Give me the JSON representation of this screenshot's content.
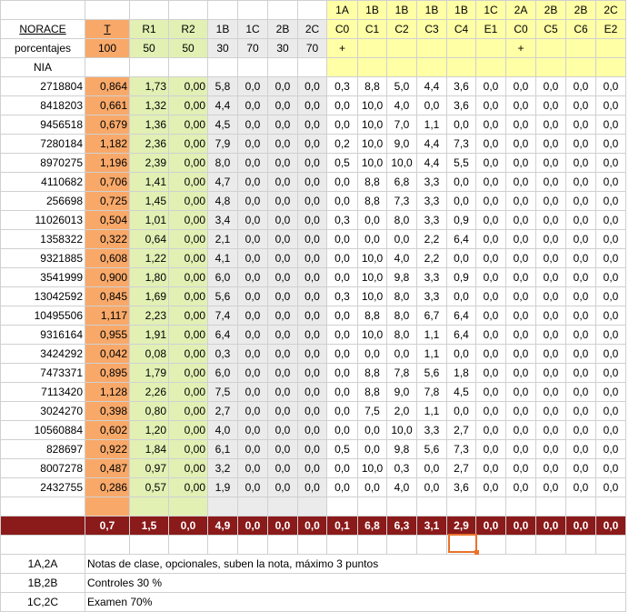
{
  "header": {
    "top": [
      "",
      "",
      "",
      "",
      "",
      "",
      "",
      "",
      "1A",
      "1B",
      "1B",
      "1B",
      "1B",
      "1C",
      "2A",
      "2B",
      "2B",
      "2C"
    ],
    "row1": [
      "NORACE",
      "T",
      "R1",
      "R2",
      "1B",
      "1C",
      "2B",
      "2C",
      "C0",
      "C1",
      "C2",
      "C3",
      "C4",
      "E1",
      "C0",
      "C5",
      "C6",
      "E2"
    ],
    "row2": [
      "porcentajes",
      "100",
      "50",
      "50",
      "30",
      "70",
      "30",
      "70",
      "+",
      "",
      "",
      "",
      "",
      "",
      "+",
      "",
      "",
      ""
    ],
    "row3": [
      "NIA",
      "",
      "",
      "",
      "",
      "",
      "",
      "",
      "",
      "",
      "",
      "",
      "",
      "",
      "",
      "",
      "",
      ""
    ]
  },
  "rows": [
    [
      "2718804",
      "0,864",
      "1,73",
      "0,00",
      "5,8",
      "0,0",
      "0,0",
      "0,0",
      "0,3",
      "8,8",
      "5,0",
      "4,4",
      "3,6",
      "0,0",
      "0,0",
      "0,0",
      "0,0",
      "0,0"
    ],
    [
      "8418203",
      "0,661",
      "1,32",
      "0,00",
      "4,4",
      "0,0",
      "0,0",
      "0,0",
      "0,0",
      "10,0",
      "4,0",
      "0,0",
      "3,6",
      "0,0",
      "0,0",
      "0,0",
      "0,0",
      "0,0"
    ],
    [
      "9456518",
      "0,679",
      "1,36",
      "0,00",
      "4,5",
      "0,0",
      "0,0",
      "0,0",
      "0,0",
      "10,0",
      "7,0",
      "1,1",
      "0,0",
      "0,0",
      "0,0",
      "0,0",
      "0,0",
      "0,0"
    ],
    [
      "7280184",
      "1,182",
      "2,36",
      "0,00",
      "7,9",
      "0,0",
      "0,0",
      "0,0",
      "0,2",
      "10,0",
      "9,0",
      "4,4",
      "7,3",
      "0,0",
      "0,0",
      "0,0",
      "0,0",
      "0,0"
    ],
    [
      "8970275",
      "1,196",
      "2,39",
      "0,00",
      "8,0",
      "0,0",
      "0,0",
      "0,0",
      "0,5",
      "10,0",
      "10,0",
      "4,4",
      "5,5",
      "0,0",
      "0,0",
      "0,0",
      "0,0",
      "0,0"
    ],
    [
      "4110682",
      "0,706",
      "1,41",
      "0,00",
      "4,7",
      "0,0",
      "0,0",
      "0,0",
      "0,0",
      "8,8",
      "6,8",
      "3,3",
      "0,0",
      "0,0",
      "0,0",
      "0,0",
      "0,0",
      "0,0"
    ],
    [
      "256698",
      "0,725",
      "1,45",
      "0,00",
      "4,8",
      "0,0",
      "0,0",
      "0,0",
      "0,0",
      "8,8",
      "7,3",
      "3,3",
      "0,0",
      "0,0",
      "0,0",
      "0,0",
      "0,0",
      "0,0"
    ],
    [
      "11026013",
      "0,504",
      "1,01",
      "0,00",
      "3,4",
      "0,0",
      "0,0",
      "0,0",
      "0,3",
      "0,0",
      "8,0",
      "3,3",
      "0,9",
      "0,0",
      "0,0",
      "0,0",
      "0,0",
      "0,0"
    ],
    [
      "1358322",
      "0,322",
      "0,64",
      "0,00",
      "2,1",
      "0,0",
      "0,0",
      "0,0",
      "0,0",
      "0,0",
      "0,0",
      "2,2",
      "6,4",
      "0,0",
      "0,0",
      "0,0",
      "0,0",
      "0,0"
    ],
    [
      "9321885",
      "0,608",
      "1,22",
      "0,00",
      "4,1",
      "0,0",
      "0,0",
      "0,0",
      "0,0",
      "10,0",
      "4,0",
      "2,2",
      "0,0",
      "0,0",
      "0,0",
      "0,0",
      "0,0",
      "0,0"
    ],
    [
      "3541999",
      "0,900",
      "1,80",
      "0,00",
      "6,0",
      "0,0",
      "0,0",
      "0,0",
      "0,0",
      "10,0",
      "9,8",
      "3,3",
      "0,9",
      "0,0",
      "0,0",
      "0,0",
      "0,0",
      "0,0"
    ],
    [
      "13042592",
      "0,845",
      "1,69",
      "0,00",
      "5,6",
      "0,0",
      "0,0",
      "0,0",
      "0,3",
      "10,0",
      "8,0",
      "3,3",
      "0,0",
      "0,0",
      "0,0",
      "0,0",
      "0,0",
      "0,0"
    ],
    [
      "10495506",
      "1,117",
      "2,23",
      "0,00",
      "7,4",
      "0,0",
      "0,0",
      "0,0",
      "0,0",
      "8,8",
      "8,0",
      "6,7",
      "6,4",
      "0,0",
      "0,0",
      "0,0",
      "0,0",
      "0,0"
    ],
    [
      "9316164",
      "0,955",
      "1,91",
      "0,00",
      "6,4",
      "0,0",
      "0,0",
      "0,0",
      "0,0",
      "10,0",
      "8,0",
      "1,1",
      "6,4",
      "0,0",
      "0,0",
      "0,0",
      "0,0",
      "0,0"
    ],
    [
      "3424292",
      "0,042",
      "0,08",
      "0,00",
      "0,3",
      "0,0",
      "0,0",
      "0,0",
      "0,0",
      "0,0",
      "0,0",
      "1,1",
      "0,0",
      "0,0",
      "0,0",
      "0,0",
      "0,0",
      "0,0"
    ],
    [
      "7473371",
      "0,895",
      "1,79",
      "0,00",
      "6,0",
      "0,0",
      "0,0",
      "0,0",
      "0,0",
      "8,8",
      "7,8",
      "5,6",
      "1,8",
      "0,0",
      "0,0",
      "0,0",
      "0,0",
      "0,0"
    ],
    [
      "7113420",
      "1,128",
      "2,26",
      "0,00",
      "7,5",
      "0,0",
      "0,0",
      "0,0",
      "0,0",
      "8,8",
      "9,0",
      "7,8",
      "4,5",
      "0,0",
      "0,0",
      "0,0",
      "0,0",
      "0,0"
    ],
    [
      "3024270",
      "0,398",
      "0,80",
      "0,00",
      "2,7",
      "0,0",
      "0,0",
      "0,0",
      "0,0",
      "7,5",
      "2,0",
      "1,1",
      "0,0",
      "0,0",
      "0,0",
      "0,0",
      "0,0",
      "0,0"
    ],
    [
      "10560884",
      "0,602",
      "1,20",
      "0,00",
      "4,0",
      "0,0",
      "0,0",
      "0,0",
      "0,0",
      "0,0",
      "10,0",
      "3,3",
      "2,7",
      "0,0",
      "0,0",
      "0,0",
      "0,0",
      "0,0"
    ],
    [
      "828697",
      "0,922",
      "1,84",
      "0,00",
      "6,1",
      "0,0",
      "0,0",
      "0,0",
      "0,5",
      "0,0",
      "9,8",
      "5,6",
      "7,3",
      "0,0",
      "0,0",
      "0,0",
      "0,0",
      "0,0"
    ],
    [
      "8007278",
      "0,487",
      "0,97",
      "0,00",
      "3,2",
      "0,0",
      "0,0",
      "0,0",
      "0,0",
      "10,0",
      "0,3",
      "0,0",
      "2,7",
      "0,0",
      "0,0",
      "0,0",
      "0,0",
      "0,0"
    ],
    [
      "2432755",
      "0,286",
      "0,57",
      "0,00",
      "1,9",
      "0,0",
      "0,0",
      "0,0",
      "0,0",
      "0,0",
      "4,0",
      "0,0",
      "3,6",
      "0,0",
      "0,0",
      "0,0",
      "0,0",
      "0,0"
    ]
  ],
  "summary": [
    "",
    "0,7",
    "1,5",
    "0,0",
    "4,9",
    "0,0",
    "0,0",
    "0,0",
    "0,1",
    "6,8",
    "6,3",
    "3,1",
    "2,9",
    "0,0",
    "0,0",
    "0,0",
    "0,0",
    "0,0"
  ],
  "notes": [
    {
      "key": "1A,2A",
      "text": "Notas de clase, opcionales, suben la nota, máximo 3 puntos"
    },
    {
      "key": "1B,2B",
      "text": "Controles 30 %"
    },
    {
      "key": "1C,2C",
      "text": "Examen 70%"
    }
  ],
  "colors": {
    "orange": "#f8a96a",
    "green": "#e2f0b4",
    "grey": "#ebebeb",
    "yellow": "#ffffa6",
    "summary": "#8b1a1a",
    "cursor": "#e8722a"
  }
}
